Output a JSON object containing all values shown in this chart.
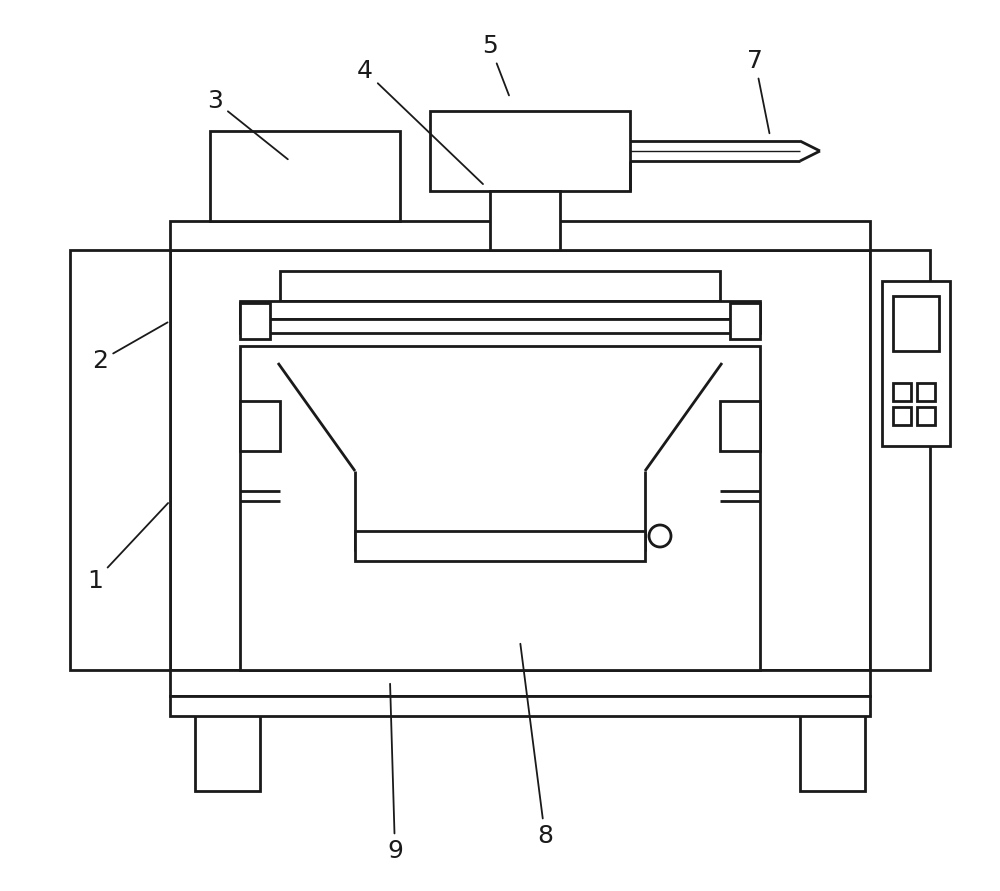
{
  "bg_color": "#ffffff",
  "line_color": "#1a1a1a",
  "lw": 2.0,
  "fig_width": 10.0,
  "fig_height": 8.91,
  "label_fontsize": 18
}
